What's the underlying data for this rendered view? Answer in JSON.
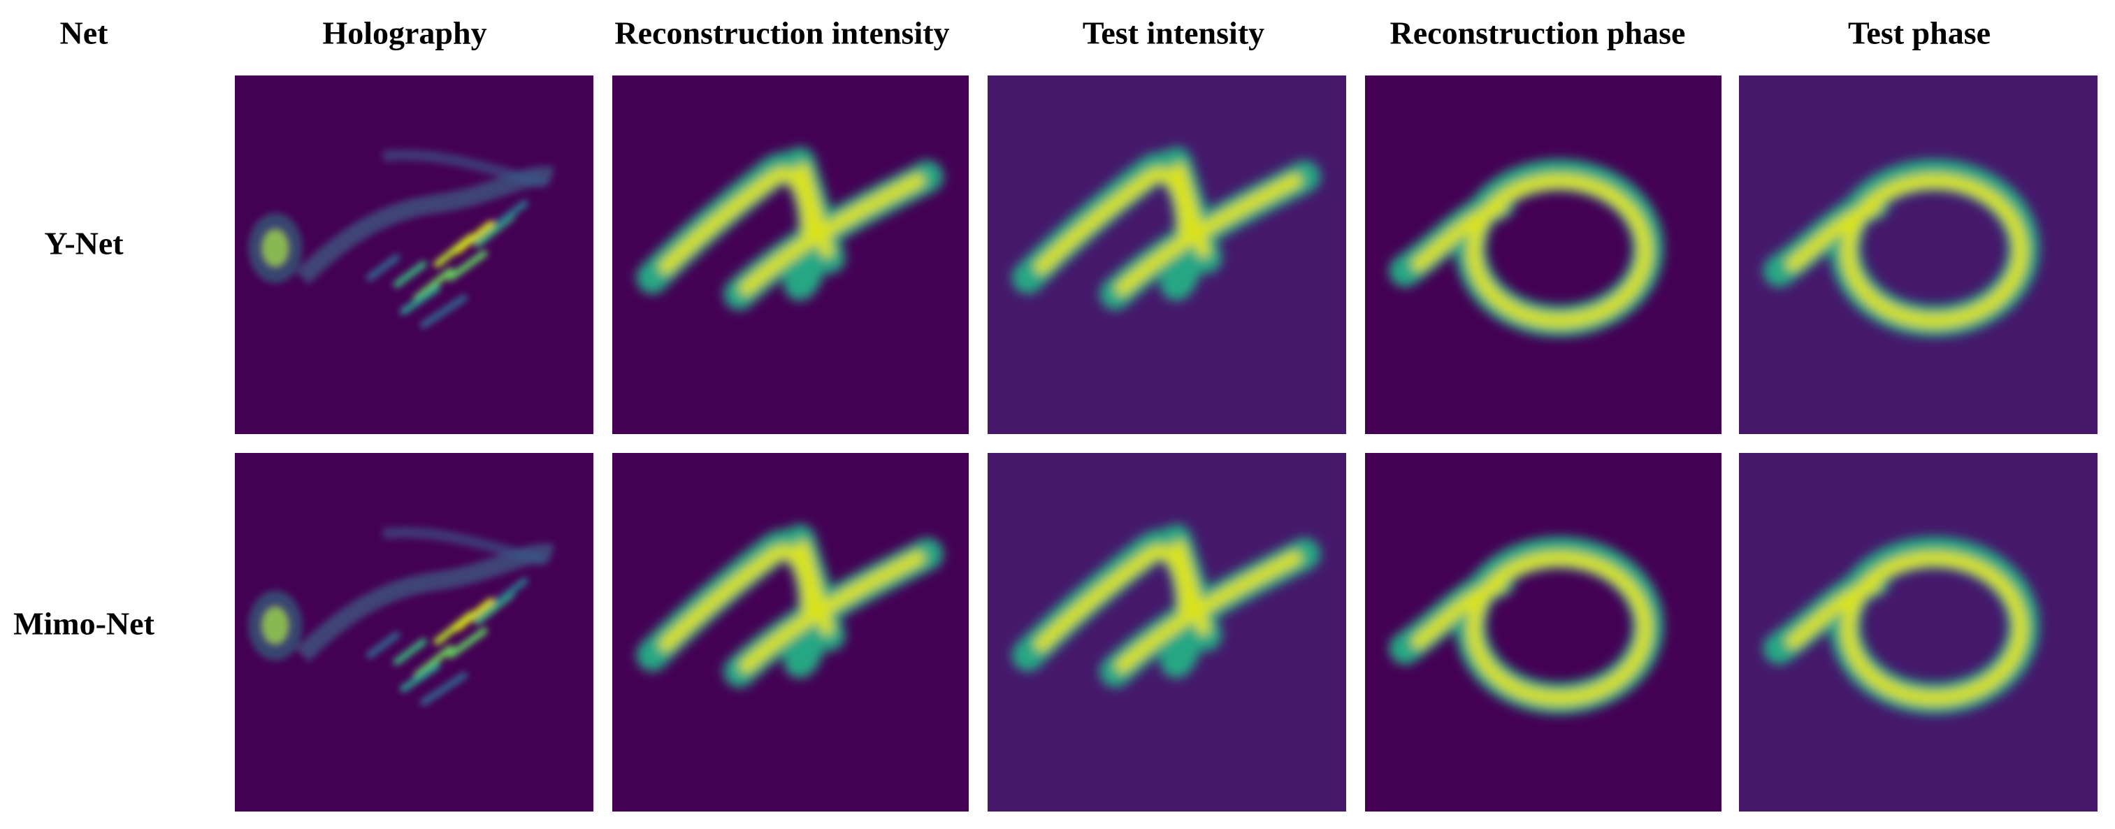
{
  "columns": [
    "Net",
    "Holography",
    "Reconstruction intensity",
    "Test intensity",
    "Reconstruction phase",
    "Test phase"
  ],
  "rows": [
    "Y-Net",
    "Mimo-Net"
  ]
}
